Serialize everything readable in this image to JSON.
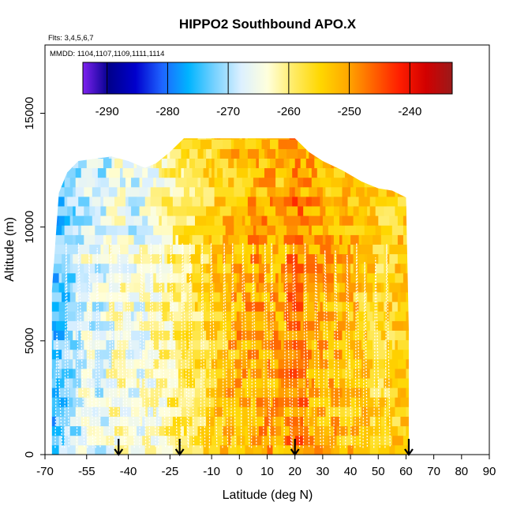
{
  "chart_data": {
    "type": "heatmap",
    "title": "HIPPO2 Southbound APO.X",
    "subtitle_flights": "Flts: 3,4,5,6,7",
    "subtitle_dates": "MMDD: 1104,1107,1109,1111,1114",
    "xlabel": "Latitude (deg N)",
    "ylabel": "Altitude (m)",
    "xlim": [
      -70,
      90
    ],
    "ylim": [
      0,
      18000
    ],
    "x_ticks": [
      {
        "value": -70,
        "label": "-70"
      },
      {
        "value": -55,
        "label": "-55"
      },
      {
        "value": -40,
        "label": "-40"
      },
      {
        "value": -25,
        "label": "-25"
      },
      {
        "value": -10,
        "label": "-10"
      },
      {
        "value": 0,
        "label": "0"
      },
      {
        "value": 10,
        "label": "10"
      },
      {
        "value": 20,
        "label": "20"
      },
      {
        "value": 30,
        "label": "30"
      },
      {
        "value": 40,
        "label": "40"
      },
      {
        "value": 50,
        "label": "50"
      },
      {
        "value": 60,
        "label": "60"
      },
      {
        "value": 70,
        "label": "70"
      },
      {
        "value": 80,
        "label": "80"
      },
      {
        "value": 90,
        "label": "90"
      }
    ],
    "y_ticks": [
      {
        "value": 0,
        "label": "0"
      },
      {
        "value": 5000,
        "label": "5000"
      },
      {
        "value": 10000,
        "label": "10000"
      },
      {
        "value": 15000,
        "label": "15000"
      }
    ],
    "colorbar": {
      "range": [
        -294,
        -233
      ],
      "ticks": [
        {
          "value": -290,
          "label": "-290"
        },
        {
          "value": -280,
          "label": "-280"
        },
        {
          "value": -270,
          "label": "-270"
        },
        {
          "value": -260,
          "label": "-260"
        },
        {
          "value": -250,
          "label": "-250"
        },
        {
          "value": -240,
          "label": "-240"
        }
      ],
      "colors": [
        "#7e22f0",
        "#00008c",
        "#0000cd",
        "#1e64ff",
        "#00b4ff",
        "#78d2ff",
        "#dcf0ff",
        "#ffffdc",
        "#ffeb64",
        "#ffd700",
        "#ffaa00",
        "#ff6400",
        "#ff1e00",
        "#d20000",
        "#9b1a1a"
      ]
    },
    "flight_markers": [
      {
        "lat": -43.5,
        "label": "arrow"
      },
      {
        "lat": -21.5,
        "label": "arrow"
      },
      {
        "lat": 20.0,
        "label": "arrow"
      },
      {
        "lat": 61.0,
        "label": "arrow"
      }
    ],
    "coverage": [
      {
        "lat": -67.5,
        "top": 7200
      },
      {
        "lat": -65,
        "top": 11500
      },
      {
        "lat": -62,
        "top": 12400
      },
      {
        "lat": -58,
        "top": 12900
      },
      {
        "lat": -52,
        "top": 13000
      },
      {
        "lat": -46,
        "top": 13100
      },
      {
        "lat": -40,
        "top": 12900
      },
      {
        "lat": -34,
        "top": 12600
      },
      {
        "lat": -30,
        "top": 12800
      },
      {
        "lat": -25,
        "top": 13300
      },
      {
        "lat": -20,
        "top": 13900
      },
      {
        "lat": -12,
        "top": 13900
      },
      {
        "lat": 0,
        "top": 13900
      },
      {
        "lat": 10,
        "top": 13900
      },
      {
        "lat": 20,
        "top": 13900
      },
      {
        "lat": 25,
        "top": 13300
      },
      {
        "lat": 30,
        "top": 12900
      },
      {
        "lat": 37,
        "top": 12500
      },
      {
        "lat": 44,
        "top": 12000
      },
      {
        "lat": 50,
        "top": 11700
      },
      {
        "lat": 55,
        "top": 11600
      },
      {
        "lat": 60,
        "top": 11300
      },
      {
        "lat": 61,
        "top": 5500
      }
    ],
    "value_field_anchors": [
      {
        "lat": -68,
        "value": -275
      },
      {
        "lat": -62,
        "value": -272
      },
      {
        "lat": -56,
        "value": -266
      },
      {
        "lat": -50,
        "value": -268
      },
      {
        "lat": -44,
        "value": -263
      },
      {
        "lat": -38,
        "value": -265
      },
      {
        "lat": -32,
        "value": -264
      },
      {
        "lat": -26,
        "value": -261
      },
      {
        "lat": -20,
        "value": -259
      },
      {
        "lat": -14,
        "value": -257
      },
      {
        "lat": -8,
        "value": -254
      },
      {
        "lat": 0,
        "value": -251
      },
      {
        "lat": 8,
        "value": -250
      },
      {
        "lat": 15,
        "value": -251
      },
      {
        "lat": 20,
        "value": -247
      },
      {
        "lat": 28,
        "value": -251
      },
      {
        "lat": 36,
        "value": -252
      },
      {
        "lat": 44,
        "value": -254
      },
      {
        "lat": 52,
        "value": -256
      },
      {
        "lat": 58,
        "value": -254
      },
      {
        "lat": 61,
        "value": -254
      }
    ]
  }
}
